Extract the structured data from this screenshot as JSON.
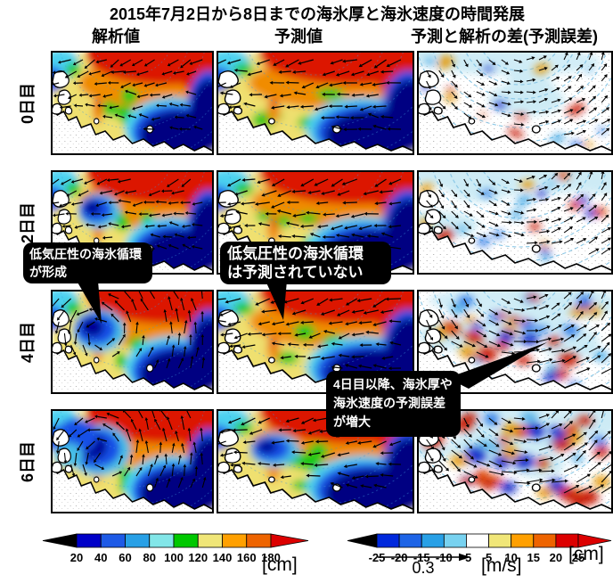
{
  "title": "2015年7月2日から8日までの海氷厚と海氷速度の時間発展",
  "column_headers": [
    "解析値",
    "予測値",
    "予測と解析の差(予測誤差)"
  ],
  "row_labels": [
    "0日目",
    "2日目",
    "4日目",
    "6日目"
  ],
  "callouts": [
    {
      "lines": [
        "低気圧性の海氷循環",
        "が形成"
      ]
    },
    {
      "lines": [
        "低気圧性の海氷循環",
        "は予測されていない"
      ]
    },
    {
      "lines": [
        "4日目以降、海氷厚や",
        "海氷速度の予測誤差",
        "が増大"
      ]
    }
  ],
  "chart_data": {
    "type": "heatmap",
    "title": "2015年7月2日から8日までの海氷厚と海氷速度の時間発展",
    "rows": [
      "0日目",
      "2日目",
      "4日目",
      "6日目"
    ],
    "columns": [
      "解析値",
      "予測値",
      "予測と解析の差(予測誤差)"
    ],
    "panels": [
      {
        "row": "0日目",
        "column": "解析値",
        "kind": "thickness",
        "field": "drift",
        "cyclone": 0,
        "seed": 11
      },
      {
        "row": "0日目",
        "column": "予測値",
        "kind": "thickness",
        "field": "drift",
        "cyclone": 0,
        "seed": 12
      },
      {
        "row": "0日目",
        "column": "予測と解析の差",
        "kind": "difference",
        "level": 1,
        "seed": 13
      },
      {
        "row": "2日目",
        "column": "解析値",
        "kind": "thickness",
        "field": "drift",
        "cyclone": 0.5,
        "seed": 21
      },
      {
        "row": "2日目",
        "column": "予測値",
        "kind": "thickness",
        "field": "drift",
        "cyclone": 0,
        "seed": 22
      },
      {
        "row": "2日目",
        "column": "予測と解析の差",
        "kind": "difference",
        "level": 1.4,
        "seed": 23
      },
      {
        "row": "4日目",
        "column": "解析値",
        "kind": "thickness",
        "field": "cyclonic",
        "cyclone": 1.2,
        "seed": 31
      },
      {
        "row": "4日目",
        "column": "予測値",
        "kind": "thickness",
        "field": "drift",
        "cyclone": 0,
        "seed": 32
      },
      {
        "row": "4日目",
        "column": "予測と解析の差",
        "kind": "difference",
        "level": 2.6,
        "seed": 33
      },
      {
        "row": "6日目",
        "column": "解析値",
        "kind": "thickness",
        "field": "cyclonic",
        "cyclone": 2,
        "seed": 41
      },
      {
        "row": "6日目",
        "column": "予測値",
        "kind": "thickness",
        "field": "drift",
        "cyclone": 0.4,
        "seed": 42
      },
      {
        "row": "6日目",
        "column": "予測と解析の差",
        "kind": "difference",
        "level": 3.6,
        "seed": 43
      }
    ],
    "colorbars": [
      {
        "name": "sea-ice-thickness",
        "unit": "[cm]",
        "ticks": [
          20,
          40,
          60,
          80,
          100,
          120,
          140,
          160,
          180
        ],
        "colors": [
          "#000000",
          "#0000C8",
          "#1E5AE6",
          "#28A0E6",
          "#82E6E8",
          "#00C800",
          "#F0E678",
          "#FFA000",
          "#EE6400",
          "#DC0000"
        ]
      },
      {
        "name": "thickness-difference",
        "unit": "[cm]",
        "ticks": [
          -25,
          -20,
          -15,
          -10,
          -5,
          5,
          10,
          15,
          20,
          25
        ],
        "colors": [
          "#000000",
          "#0028DC",
          "#1E64E6",
          "#28A0E6",
          "#78D2F0",
          "#FFFFFF",
          "#F0E678",
          "#FFA000",
          "#EE6400",
          "#DC0000",
          "#DC0000"
        ]
      }
    ],
    "vector_scale": {
      "value": "0.3",
      "unit": "[m/s]"
    }
  }
}
